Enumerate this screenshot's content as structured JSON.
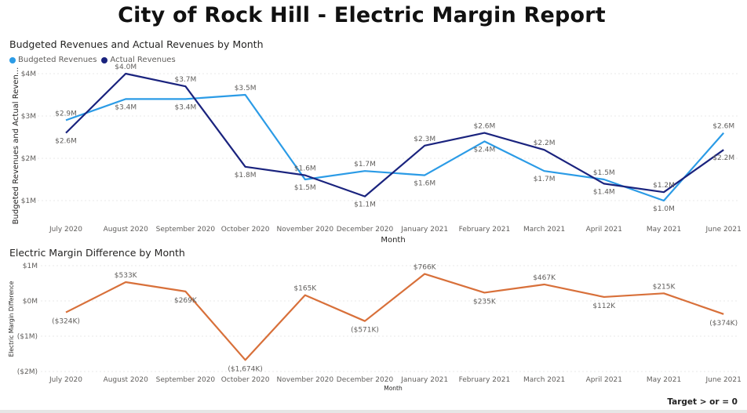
{
  "page": {
    "title": "City of Rock Hill - Electric Margin Report",
    "footer_note": "Target > or = 0"
  },
  "colors": {
    "budgeted": "#2b9be6",
    "actual": "#1a237e",
    "difference": "#d8703a"
  },
  "chart_data": [
    {
      "type": "line",
      "title": "Budgeted Revenues and Actual Revenues by Month",
      "xlabel": "Month",
      "ylabel": "Budgeted Revenues and Actual Reven...",
      "categories": [
        "July 2020",
        "August 2020",
        "September 2020",
        "October 2020",
        "November 2020",
        "December 2020",
        "January 2021",
        "February 2021",
        "March 2021",
        "April 2021",
        "May 2021",
        "June 2021"
      ],
      "ylim": [
        0.7,
        4.0
      ],
      "yticks": [
        {
          "value": 1,
          "label": "$1M"
        },
        {
          "value": 2,
          "label": "$2M"
        },
        {
          "value": 3,
          "label": "$3M"
        },
        {
          "value": 4,
          "label": "$4M"
        }
      ],
      "legend_position": "top-left",
      "series": [
        {
          "name": "Budgeted Revenues",
          "values": [
            2.9,
            3.4,
            3.4,
            3.5,
            1.5,
            1.7,
            1.6,
            2.4,
            1.7,
            1.5,
            1.0,
            2.6
          ],
          "labels": [
            "$2.9M",
            "$3.4M",
            "$3.4M",
            "$3.5M",
            "$1.5M",
            "$1.7M",
            "$1.6M",
            "$2.4M",
            "$1.7M",
            "$1.5M",
            "$1.0M",
            "$2.6M"
          ]
        },
        {
          "name": "Actual Revenues",
          "values": [
            2.6,
            4.0,
            3.7,
            1.8,
            1.6,
            1.1,
            2.3,
            2.6,
            2.2,
            1.4,
            1.2,
            2.2
          ],
          "labels": [
            "$2.6M",
            "$4.0M",
            "$3.7M",
            "$1.8M",
            "$1.6M",
            "$1.1M",
            "$2.3M",
            "$2.6M",
            "$2.2M",
            "$1.4M",
            "$1.2M",
            "$2.2M"
          ]
        }
      ]
    },
    {
      "type": "line",
      "title": "Electric Margin Difference by Month",
      "xlabel": "Month",
      "ylabel": "Electric Margin Difference",
      "categories": [
        "July 2020",
        "August 2020",
        "September 2020",
        "October 2020",
        "November 2020",
        "December 2020",
        "January 2021",
        "February 2021",
        "March 2021",
        "April 2021",
        "May 2021",
        "June 2021"
      ],
      "ylim": [
        -2000,
        1000
      ],
      "yticks": [
        {
          "value": 1000,
          "label": "$1M"
        },
        {
          "value": 0,
          "label": "$0M"
        },
        {
          "value": -1000,
          "label": "($1M)"
        },
        {
          "value": -2000,
          "label": "($2M)"
        }
      ],
      "series": [
        {
          "name": "Electric Margin Difference",
          "values": [
            -324,
            533,
            269,
            -1674,
            165,
            -571,
            766,
            235,
            467,
            112,
            215,
            -374
          ],
          "labels": [
            "($324K)",
            "$533K",
            "$269K",
            "($1,674K)",
            "$165K",
            "($571K)",
            "$766K",
            "$235K",
            "$467K",
            "$112K",
            "$215K",
            "($374K)"
          ]
        }
      ]
    }
  ]
}
